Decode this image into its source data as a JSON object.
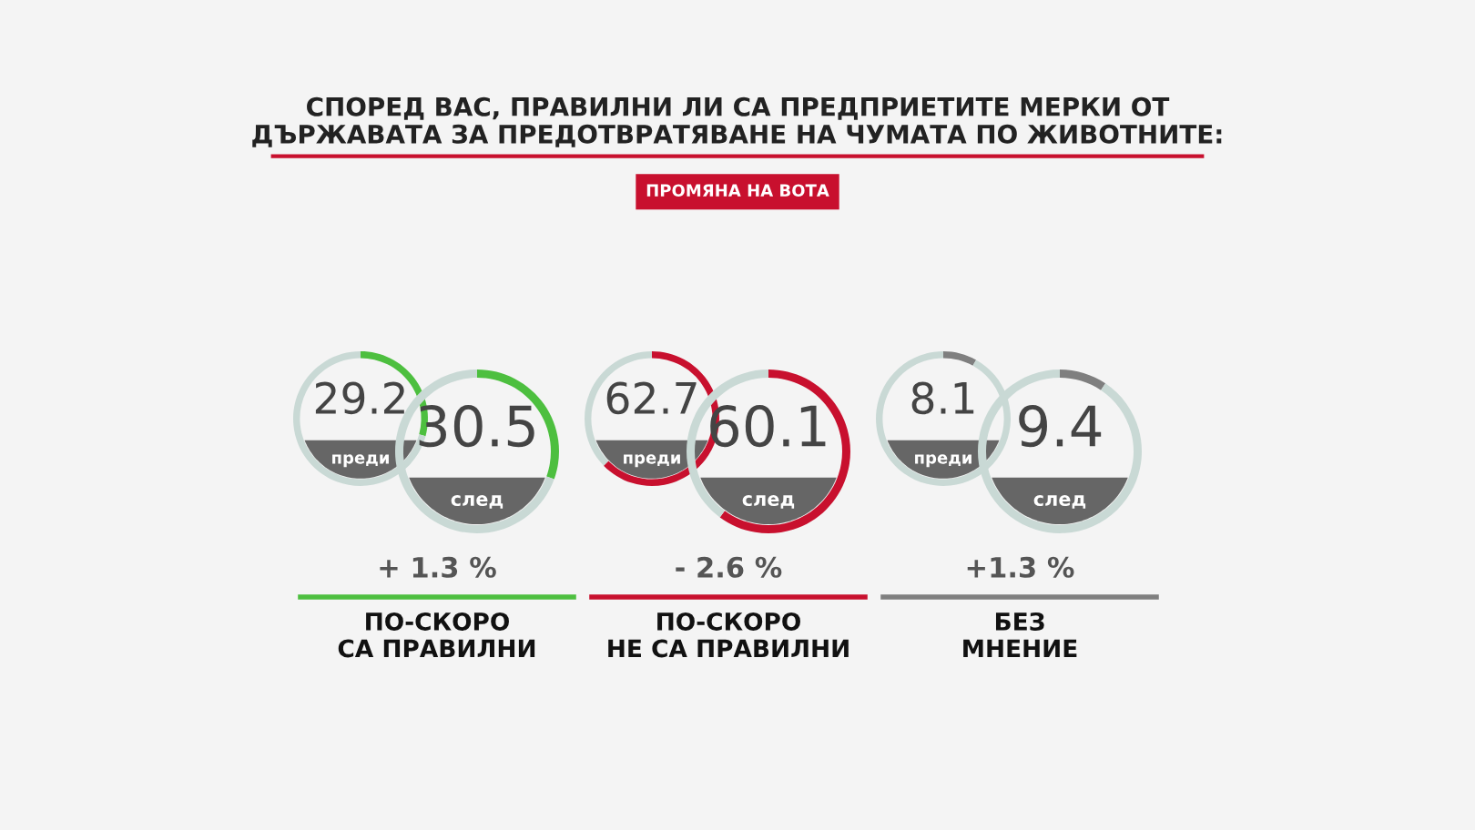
{
  "chart_data": [
    {
      "type": "other",
      "title": "СПОРЕД ВАС, ПРАВИЛНИ ЛИ СА ПРЕДПРИЕТИТЕ МЕРКИ ОТ\nДЪРЖАВАТА ЗА ПРЕДОТВРАТЯВАНЕ НА ЧУМАТА ПО ЖИВОТНИТЕ:",
      "subtitle": "ПРОМЯНА НА ВОТА"
    },
    {
      "type": "donut",
      "title": "преди",
      "categories": [
        null,
        null
      ],
      "values": [
        29.2,
        70.8
      ],
      "colors": [
        "#4dbf3f",
        "#c9d9d5"
      ],
      "value_labels": [
        "29.2",
        null
      ]
    },
    {
      "type": "donut",
      "title": "след",
      "categories": [
        null,
        null
      ],
      "values": [
        30.5,
        69.5
      ],
      "colors": [
        "#4dbf3f",
        "#c9d9d5"
      ],
      "value_labels": [
        "30.5",
        null
      ],
      "annotations": [
        "+ 1.3 %",
        "ПО-СКОРО\nСА ПРАВИЛНИ"
      ]
    },
    {
      "type": "donut",
      "title": "преди",
      "categories": [
        null,
        null
      ],
      "values": [
        62.7,
        37.3
      ],
      "colors": [
        "#c8102e",
        "#c9d9d5"
      ],
      "value_labels": [
        "62.7",
        null
      ]
    },
    {
      "type": "donut",
      "title": "след",
      "categories": [
        null,
        null
      ],
      "values": [
        60.1,
        39.9
      ],
      "colors": [
        "#c8102e",
        "#c9d9d5"
      ],
      "value_labels": [
        "60.1",
        null
      ],
      "annotations": [
        "- 2.6 %",
        "ПО-СКОРО\nНЕ СА ПРАВИЛНИ"
      ]
    },
    {
      "type": "donut",
      "title": "преди",
      "categories": [
        null,
        null
      ],
      "values": [
        8.1,
        91.9
      ],
      "colors": [
        "#7f7f7f",
        "#c9d9d5"
      ],
      "value_labels": [
        "8.1",
        null
      ]
    },
    {
      "type": "donut",
      "title": "след",
      "categories": [
        null,
        null
      ],
      "values": [
        9.4,
        90.6
      ],
      "colors": [
        "#7f7f7f",
        "#c9d9d5"
      ],
      "value_labels": [
        "9.4",
        null
      ],
      "annotations": [
        "+1.3 %",
        "БЕЗ\nМНЕНИЕ"
      ]
    }
  ]
}
